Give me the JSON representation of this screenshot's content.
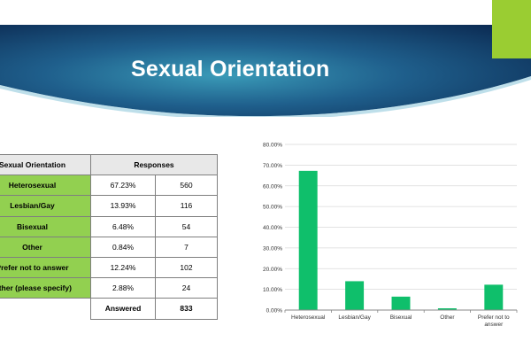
{
  "slide": {
    "title": "Sexual Orientation",
    "accent_color": "#9acd32",
    "banner_colors": [
      "#0b2a52",
      "#2e86a8"
    ]
  },
  "table": {
    "header_category": "Sexual Orientation",
    "header_responses": "Responses",
    "rows": [
      {
        "category": "Heterosexual",
        "percent": "67.23%",
        "count": "560"
      },
      {
        "category": "Lesbian/Gay",
        "percent": "13.93%",
        "count": "116"
      },
      {
        "category": "Bisexual",
        "percent": "6.48%",
        "count": "54"
      },
      {
        "category": "Other",
        "percent": "0.84%",
        "count": "7"
      },
      {
        "category": "Prefer not to answer",
        "percent": "12.24%",
        "count": "102"
      },
      {
        "category": "Other (please specify)",
        "percent": "2.88%",
        "count": "24"
      }
    ],
    "answered_label": "Answered",
    "answered_count": "833",
    "category_color": "#92d050"
  },
  "chart_data": {
    "type": "bar",
    "categories": [
      "Heterosexual",
      "Lesbian/Gay",
      "Bisexual",
      "Other",
      "Prefer not to\nanswer"
    ],
    "values": [
      67.23,
      13.93,
      6.48,
      0.84,
      12.24
    ],
    "ylim": [
      0,
      80
    ],
    "ytick_labels": [
      "0.00%",
      "10.00%",
      "20.00%",
      "30.00%",
      "40.00%",
      "50.00%",
      "60.00%",
      "70.00%",
      "80.00%"
    ],
    "grid": true,
    "legend": "none",
    "bar_color": "#0fbf6b"
  }
}
